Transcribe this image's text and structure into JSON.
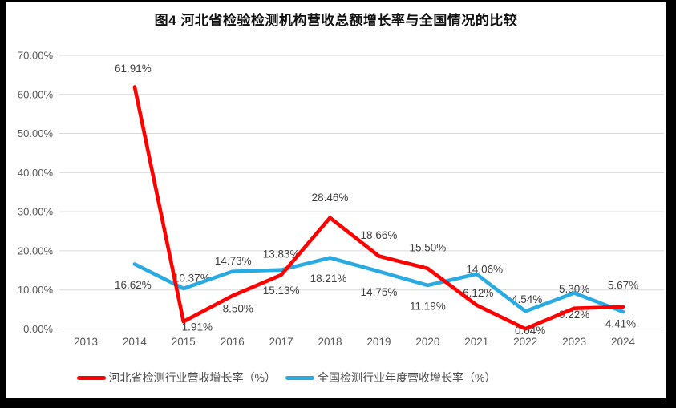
{
  "figure": {
    "title": "图4 河北省检验检测机构营收总额增长率与全国情况的比较"
  },
  "colors": {
    "hebei_red": "#FE0000",
    "national_blue": "#29ABE2",
    "gridline": "#D9D9D9",
    "axis_text": "#595959",
    "data_label_text": "#404040",
    "frame_black": "#000000",
    "background": "#FFFFFF"
  },
  "chart_data": {
    "type": "line",
    "title": "图4 河北省检验检测机构营收总额增长率与全国情况的比较",
    "categories": [
      "2013",
      "2014",
      "2015",
      "2016",
      "2017",
      "2018",
      "2019",
      "2020",
      "2021",
      "2022",
      "2023",
      "2024"
    ],
    "series": [
      {
        "name": "河北省检测行业营收增长率（%）",
        "color": "#FE0000",
        "start_index": 1,
        "values": [
          61.91,
          1.91,
          8.5,
          13.83,
          28.46,
          18.66,
          15.5,
          6.12,
          0.04,
          5.3,
          5.67
        ],
        "data_labels": [
          "61.91%",
          "1.91%",
          "8.50%",
          "13.83%",
          "28.46%",
          "18.66%",
          "15.50%",
          "6.12%",
          "0.04%",
          "5.30%",
          "5.67%"
        ],
        "label_offsets": [
          [
            -2,
            -23
          ],
          [
            17,
            7
          ],
          [
            7,
            16
          ],
          [
            0,
            -26
          ],
          [
            0,
            -25
          ],
          [
            0,
            -26
          ],
          [
            0,
            -26
          ],
          [
            2,
            -15
          ],
          [
            6,
            2
          ],
          [
            0,
            -24
          ],
          [
            0,
            -27
          ]
        ]
      },
      {
        "name": "全国检测行业年度营收增长率（%）",
        "color": "#29ABE2",
        "start_index": 1,
        "values": [
          16.62,
          10.37,
          14.73,
          15.13,
          18.21,
          14.75,
          11.19,
          14.06,
          4.54,
          9.22,
          4.41
        ],
        "data_labels": [
          "16.62%",
          "10.37%",
          "14.73%",
          "15.13%",
          "18.21%",
          "14.75%",
          "11.19%",
          "14.06%",
          "4.54%",
          "9.22%",
          "4.41%"
        ],
        "label_offsets": [
          [
            -2,
            26
          ],
          [
            10,
            -13
          ],
          [
            1,
            -13
          ],
          [
            0,
            26
          ],
          [
            -2,
            26
          ],
          [
            0,
            26
          ],
          [
            0,
            26
          ],
          [
            10,
            -6
          ],
          [
            2,
            -15
          ],
          [
            0,
            27
          ],
          [
            -3,
            15
          ]
        ]
      }
    ],
    "y_axis": {
      "min": 0,
      "max": 70,
      "tick_interval": 10,
      "grid": true,
      "ticks": [
        "0.00%",
        "10.00%",
        "20.00%",
        "30.00%",
        "40.00%",
        "50.00%",
        "60.00%",
        "70.00%"
      ]
    },
    "x_axis": {
      "ticks": [
        "2013",
        "2014",
        "2015",
        "2016",
        "2017",
        "2018",
        "2019",
        "2020",
        "2021",
        "2022",
        "2023",
        "2024"
      ]
    },
    "legend_position": "bottom"
  }
}
